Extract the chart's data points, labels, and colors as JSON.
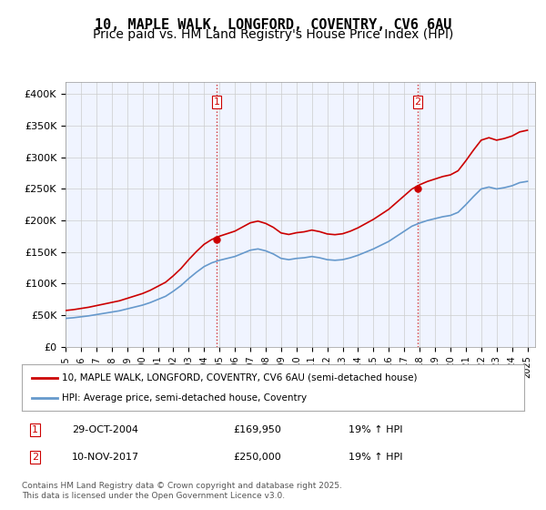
{
  "title_line1": "10, MAPLE WALK, LONGFORD, COVENTRY, CV6 6AU",
  "title_line2": "Price paid vs. HM Land Registry's House Price Index (HPI)",
  "ylabel_ticks": [
    "£0",
    "£50K",
    "£100K",
    "£150K",
    "£200K",
    "£250K",
    "£300K",
    "£350K",
    "£400K"
  ],
  "ytick_values": [
    0,
    50000,
    100000,
    150000,
    200000,
    250000,
    300000,
    350000,
    400000
  ],
  "ylim": [
    0,
    420000
  ],
  "xlim_start": 1995.0,
  "xlim_end": 2025.5,
  "xtick_years": [
    1995,
    1996,
    1997,
    1998,
    1999,
    2000,
    2001,
    2002,
    2003,
    2004,
    2005,
    2006,
    2007,
    2008,
    2009,
    2010,
    2011,
    2012,
    2013,
    2014,
    2015,
    2016,
    2017,
    2018,
    2019,
    2020,
    2021,
    2022,
    2023,
    2024,
    2025
  ],
  "hpi_color": "#6699cc",
  "price_color": "#cc0000",
  "dashed_vline_color": "#cc0000",
  "dashed_vline_style": ":",
  "purchase1_x": 2004.83,
  "purchase1_y": 169950,
  "purchase1_label": "1",
  "purchase2_x": 2017.86,
  "purchase2_y": 250000,
  "purchase2_label": "2",
  "legend_line1": "10, MAPLE WALK, LONGFORD, COVENTRY, CV6 6AU (semi-detached house)",
  "legend_line2": "HPI: Average price, semi-detached house, Coventry",
  "table_row1": [
    "1",
    "29-OCT-2004",
    "£169,950",
    "19% ↑ HPI"
  ],
  "table_row2": [
    "2",
    "10-NOV-2017",
    "£250,000",
    "19% ↑ HPI"
  ],
  "footnote": "Contains HM Land Registry data © Crown copyright and database right 2025.\nThis data is licensed under the Open Government Licence v3.0.",
  "background_color": "#f0f4ff",
  "plot_bg_color": "#f0f4ff",
  "fig_bg_color": "#ffffff",
  "grid_color": "#cccccc",
  "title_fontsize": 11,
  "subtitle_fontsize": 10
}
